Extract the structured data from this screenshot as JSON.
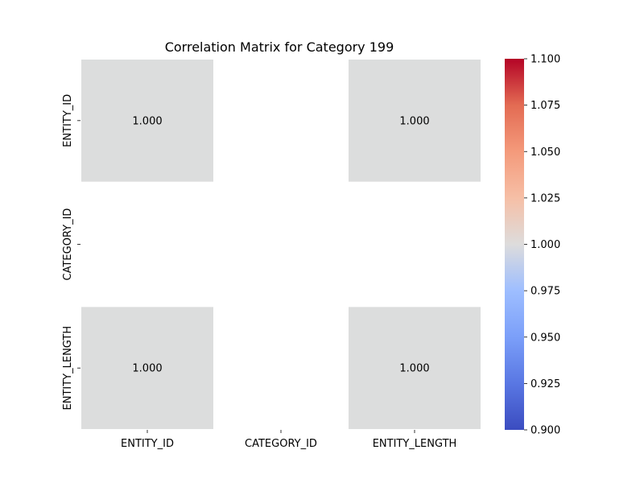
{
  "chart_data": {
    "type": "heatmap",
    "title": "Correlation Matrix for Category 199",
    "x_categories": [
      "ENTITY_ID",
      "CATEGORY_ID",
      "ENTITY_LENGTH"
    ],
    "y_categories": [
      "ENTITY_ID",
      "CATEGORY_ID",
      "ENTITY_LENGTH"
    ],
    "values": [
      [
        1.0,
        null,
        1.0
      ],
      [
        null,
        null,
        null
      ],
      [
        1.0,
        null,
        1.0
      ]
    ],
    "cell_labels": [
      [
        "1.000",
        "",
        "1.000"
      ],
      [
        "",
        "",
        ""
      ],
      [
        "1.000",
        "",
        "1.000"
      ]
    ],
    "cell_color": "#dcdddd",
    "colorbar": {
      "min": 0.9,
      "max": 1.1,
      "ticks": [
        "0.900",
        "0.925",
        "0.950",
        "0.975",
        "1.000",
        "1.025",
        "1.050",
        "1.075",
        "1.100"
      ],
      "colormap": "coolwarm"
    }
  }
}
